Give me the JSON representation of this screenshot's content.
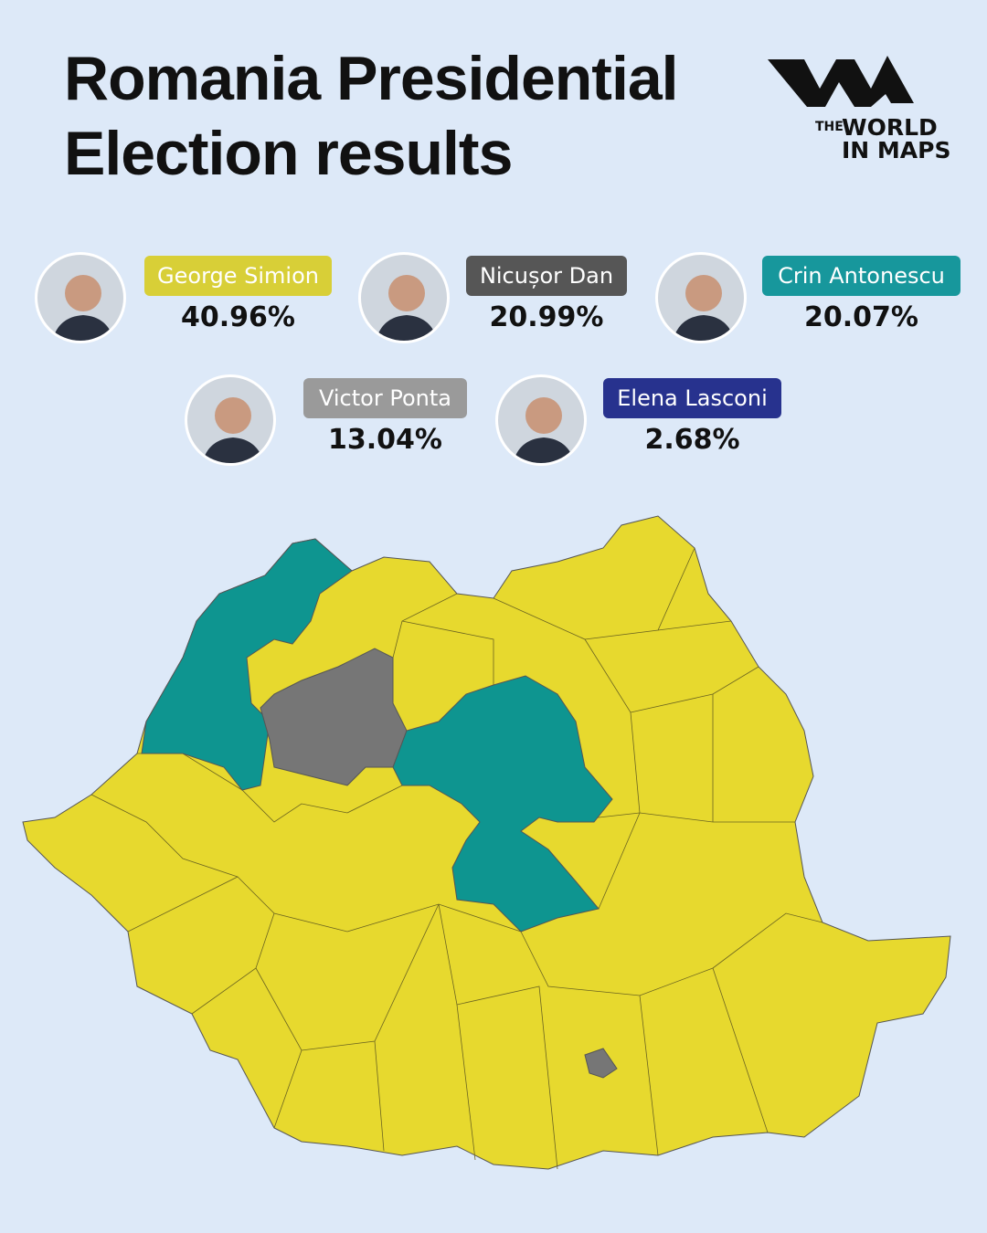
{
  "header": {
    "title_line1": "Romania Presidential",
    "title_line2": "Election results"
  },
  "logo": {
    "the": "THE",
    "world": "WORLD",
    "in_maps": "IN MAPS"
  },
  "candidates": [
    {
      "name": "George Simion",
      "share": "40.96%",
      "color": "#d8cf37"
    },
    {
      "name": "Nicușor Dan",
      "share": "20.99%",
      "color": "#565656"
    },
    {
      "name": "Crin Antonescu",
      "share": "20.07%",
      "color": "#17979c"
    },
    {
      "name": "Victor Ponta",
      "share": "13.04%",
      "color": "#9a9a9a"
    },
    {
      "name": "Elena Lasconi",
      "share": "2.68%",
      "color": "#27328e"
    }
  ]
}
